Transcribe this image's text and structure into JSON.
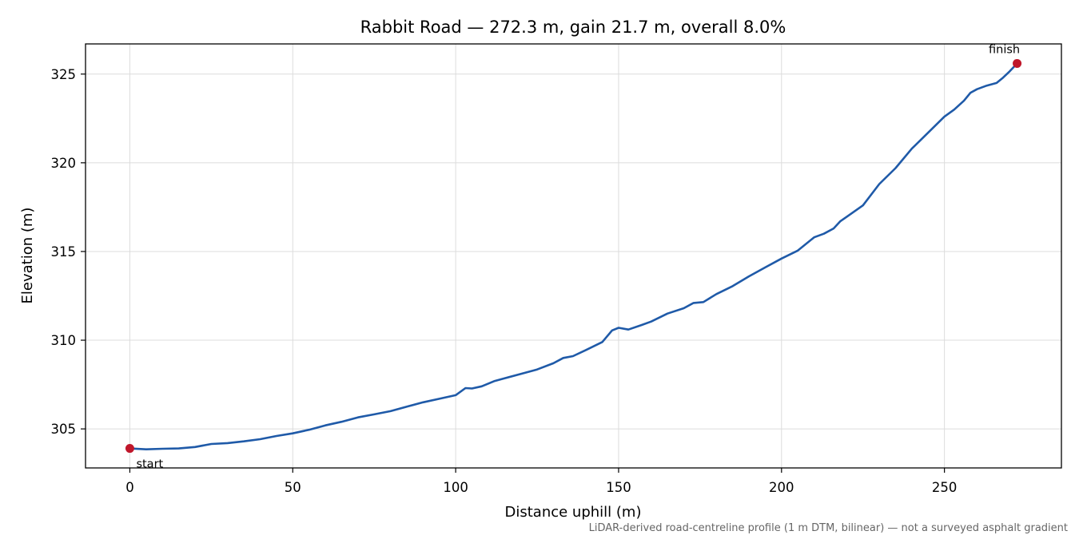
{
  "chart_data": {
    "type": "line",
    "title": "Rabbit Road — 272.3 m, gain 21.7 m, overall 8.0%",
    "xlabel": "Distance uphill (m)",
    "ylabel": "Elevation (m)",
    "xlim": [
      -13.6,
      285.9
    ],
    "ylim": [
      302.8,
      326.7
    ],
    "xticks": [
      0,
      50,
      100,
      150,
      200,
      250
    ],
    "yticks": [
      305,
      310,
      315,
      320,
      325
    ],
    "grid": true,
    "footnote": "LiDAR-derived road-centreline profile (1 m DTM, bilinear) — not a surveyed asphalt gradient",
    "series": [
      {
        "color": "#1f5aa8",
        "x": [
          0,
          5,
          10,
          15,
          20,
          25,
          30,
          35,
          40,
          45,
          50,
          55,
          60,
          65,
          70,
          75,
          80,
          85,
          90,
          95,
          100,
          103,
          105,
          108,
          112,
          115,
          120,
          125,
          130,
          133,
          136,
          140,
          145,
          148,
          150,
          153,
          157,
          160,
          165,
          170,
          173,
          176,
          180,
          185,
          190,
          195,
          200,
          205,
          210,
          213,
          216,
          218,
          220,
          225,
          230,
          235,
          240,
          245,
          250,
          253,
          256,
          258,
          260,
          263,
          266,
          268,
          270,
          272.3
        ],
        "y": [
          303.9,
          303.85,
          303.88,
          303.9,
          303.98,
          304.15,
          304.2,
          304.3,
          304.42,
          304.6,
          304.75,
          304.95,
          305.2,
          305.4,
          305.65,
          305.82,
          306.0,
          306.25,
          306.5,
          306.7,
          306.9,
          307.3,
          307.28,
          307.4,
          307.7,
          307.85,
          308.1,
          308.35,
          308.7,
          309.0,
          309.1,
          309.45,
          309.9,
          310.55,
          310.7,
          310.6,
          310.85,
          311.05,
          311.5,
          311.8,
          312.1,
          312.15,
          312.6,
          313.05,
          313.6,
          314.1,
          314.6,
          315.05,
          315.8,
          316.0,
          316.3,
          316.7,
          316.95,
          317.6,
          318.8,
          319.7,
          320.8,
          321.7,
          322.6,
          323.0,
          323.5,
          323.95,
          324.15,
          324.35,
          324.5,
          324.8,
          325.15,
          325.6
        ]
      }
    ],
    "points": [
      {
        "label": "start",
        "x": 0,
        "y": 303.9,
        "color": "#c0172b"
      },
      {
        "label": "finish",
        "x": 272.3,
        "y": 325.6,
        "color": "#c0172b"
      }
    ]
  }
}
